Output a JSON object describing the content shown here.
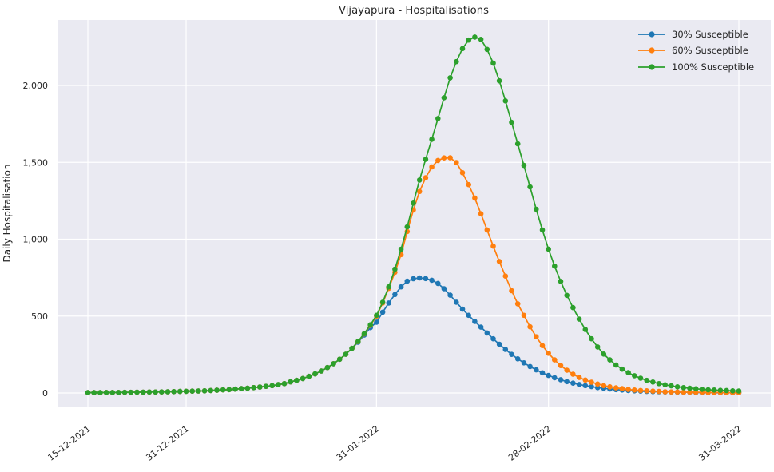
{
  "figure": {
    "background": "#ffffff",
    "plot_background": "#eaeaf2",
    "grid_color": "#ffffff",
    "text_color": "#262626"
  },
  "chart_data": {
    "type": "line",
    "title": "Vijayapura - Hospitalisations",
    "xlabel": "",
    "ylabel": "Daily Hospitalisation",
    "grid": true,
    "marker": "circle",
    "legend_position": "upper right",
    "x_start": "15-12-2021",
    "x_end": "31-03-2022",
    "x_cadence": "daily",
    "n_points": 107,
    "x_ticks": [
      {
        "label": "15-12-2021",
        "day": 0
      },
      {
        "label": "31-12-2021",
        "day": 16
      },
      {
        "label": "31-01-2022",
        "day": 47
      },
      {
        "label": "28-02-2022",
        "day": 75
      },
      {
        "label": "31-03-2022",
        "day": 106
      }
    ],
    "y_ticks": [
      {
        "label": "0",
        "value": 0
      },
      {
        "label": "500",
        "value": 500
      },
      {
        "label": "1,000",
        "value": 1000
      },
      {
        "label": "1,500",
        "value": 1500
      },
      {
        "label": "2,000",
        "value": 2000
      }
    ],
    "ylim": [
      -115,
      2435
    ],
    "series": [
      {
        "name": "30% Susceptible",
        "color": "#1f77b4",
        "peak": {
          "value": 748,
          "day": 54
        },
        "values": [
          2,
          2,
          2,
          3,
          3,
          3,
          4,
          4,
          5,
          5,
          6,
          6,
          7,
          8,
          9,
          10,
          11,
          12,
          13,
          14,
          16,
          18,
          20,
          22,
          25,
          28,
          31,
          35,
          39,
          43,
          48,
          54,
          61,
          72,
          82,
          94,
          108,
          124,
          143,
          165,
          190,
          219,
          252,
          290,
          330,
          376,
          425,
          460,
          525,
          585,
          640,
          690,
          727,
          743,
          748,
          744,
          733,
          712,
          678,
          636,
          590,
          545,
          505,
          465,
          428,
          390,
          352,
          317,
          283,
          251,
          222,
          196,
          172,
          150,
          131,
          114,
          99,
          86,
          74,
          64,
          55,
          48,
          41,
          35,
          30,
          26,
          22,
          19,
          16,
          14,
          12,
          10,
          9,
          8,
          7,
          6,
          5,
          4,
          4,
          3,
          3,
          3,
          2,
          2,
          2,
          2,
          2
        ]
      },
      {
        "name": "60% Susceptible",
        "color": "#ff7f0e",
        "peak": {
          "value": 1530,
          "day": 59
        },
        "values": [
          2,
          2,
          2,
          3,
          3,
          3,
          4,
          4,
          5,
          5,
          6,
          6,
          7,
          8,
          9,
          10,
          11,
          12,
          13,
          14,
          16,
          18,
          20,
          22,
          25,
          28,
          31,
          35,
          39,
          43,
          48,
          54,
          61,
          72,
          82,
          94,
          108,
          124,
          143,
          165,
          190,
          219,
          252,
          290,
          334,
          384,
          440,
          500,
          585,
          680,
          785,
          900,
          1050,
          1190,
          1310,
          1400,
          1470,
          1512,
          1529,
          1530,
          1498,
          1432,
          1355,
          1268,
          1165,
          1060,
          955,
          855,
          760,
          665,
          580,
          505,
          430,
          365,
          308,
          258,
          215,
          178,
          148,
          122,
          101,
          84,
          70,
          58,
          48,
          40,
          33,
          28,
          23,
          19,
          16,
          14,
          12,
          10,
          8,
          7,
          6,
          5,
          5,
          4,
          4,
          3,
          3,
          3,
          2,
          2,
          2
        ]
      },
      {
        "name": "100% Susceptible",
        "color": "#2ca02c",
        "peak": {
          "value": 2315,
          "day": 63
        },
        "values": [
          2,
          2,
          2,
          3,
          3,
          3,
          4,
          4,
          5,
          5,
          6,
          6,
          7,
          8,
          9,
          10,
          11,
          12,
          13,
          14,
          16,
          18,
          20,
          22,
          25,
          28,
          31,
          35,
          39,
          43,
          48,
          54,
          61,
          72,
          82,
          94,
          108,
          124,
          143,
          165,
          190,
          219,
          252,
          290,
          335,
          386,
          443,
          505,
          590,
          690,
          805,
          935,
          1080,
          1235,
          1385,
          1520,
          1650,
          1785,
          1920,
          2050,
          2155,
          2240,
          2295,
          2315,
          2300,
          2235,
          2145,
          2030,
          1900,
          1760,
          1620,
          1480,
          1340,
          1195,
          1060,
          935,
          825,
          725,
          635,
          555,
          480,
          413,
          352,
          299,
          253,
          215,
          182,
          155,
          132,
          112,
          96,
          82,
          71,
          61,
          53,
          46,
          40,
          35,
          31,
          27,
          24,
          21,
          19,
          17,
          16,
          14,
          13
        ]
      }
    ]
  }
}
